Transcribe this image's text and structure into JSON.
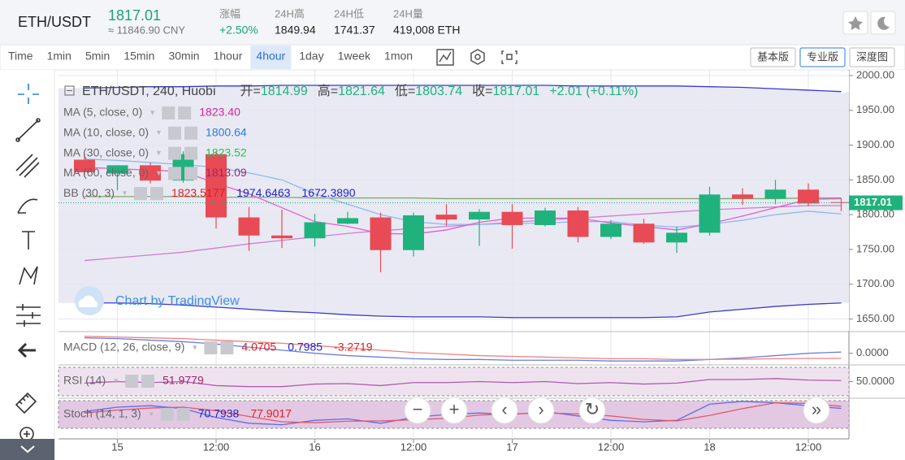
{
  "header": {
    "pair": "ETH/USDT",
    "price": "1817.01",
    "cny": "≈ 11846.90 CNY",
    "stats": [
      {
        "label": "涨幅",
        "value": "+2.50%",
        "color": "#1aa37a"
      },
      {
        "label": "24H高",
        "value": "1849.94",
        "color": "#222"
      },
      {
        "label": "24H低",
        "value": "1741.37",
        "color": "#222"
      },
      {
        "label": "24H量",
        "value": "419,008 ETH",
        "color": "#222"
      }
    ]
  },
  "toolbar": {
    "intervals": [
      {
        "label": "Time"
      },
      {
        "label": "1min"
      },
      {
        "label": "5min"
      },
      {
        "label": "15min"
      },
      {
        "label": "30min"
      },
      {
        "label": "1hour"
      },
      {
        "label": "4hour",
        "active": true
      },
      {
        "label": "1day"
      },
      {
        "label": "1week"
      },
      {
        "label": "1mon"
      }
    ],
    "versions": [
      {
        "label": "基本版"
      },
      {
        "label": "专业版",
        "active": true
      },
      {
        "label": "深度图"
      }
    ]
  },
  "chart": {
    "symbol": "ETH/USDT, 240, Huobi",
    "ohlc": [
      {
        "label": "开=",
        "value": "1814.99"
      },
      {
        "label": "高=",
        "value": "1821.64"
      },
      {
        "label": "低=",
        "value": "1803.74"
      },
      {
        "label": "收=",
        "value": "1817.01"
      }
    ],
    "change": "+2.01 (+0.11%)",
    "indicators": [
      {
        "name": "MA (5, close, 0)",
        "values": [
          {
            "text": "1823.40",
            "color": "#d6249f"
          }
        ]
      },
      {
        "name": "MA (10, close, 0)",
        "values": [
          {
            "text": "1800.64",
            "color": "#2a7de1"
          }
        ]
      },
      {
        "name": "MA (30, close, 0)",
        "values": [
          {
            "text": "1823.52",
            "color": "#1ec64f"
          }
        ]
      },
      {
        "name": "MA (60, close, 0)",
        "values": [
          {
            "text": "1813.09",
            "color": "#a0256e"
          }
        ]
      },
      {
        "name": "BB (30, 3)",
        "values": [
          {
            "text": "1823.5177",
            "color": "#e01e1e"
          },
          {
            "text": "1974.6463",
            "color": "#2222cc"
          },
          {
            "text": "1672.3890",
            "color": "#2222cc"
          }
        ]
      }
    ],
    "watermark": "Chart by TradingView",
    "ylim": [
      1633,
      2007
    ],
    "yticks": [
      {
        "value": 1650,
        "label": "1650.00"
      },
      {
        "value": 1700,
        "label": "1700.00"
      },
      {
        "value": 1750,
        "label": "1750.00"
      },
      {
        "value": 1800,
        "label": "1800.00"
      },
      {
        "value": 1850,
        "label": "1850.00"
      },
      {
        "value": 1900,
        "label": "1900.00"
      },
      {
        "value": 1950,
        "label": "1950.00"
      },
      {
        "value": 2000,
        "label": "2000.00"
      }
    ],
    "last_price": {
      "value": 1817.01,
      "label": "1817.01"
    },
    "categories": [
      null,
      "15",
      null,
      null,
      "12:00",
      null,
      null,
      "16",
      null,
      null,
      "12:00",
      null,
      null,
      "17",
      null,
      null,
      "12:00",
      null,
      null,
      "18",
      null,
      null,
      "12:00",
      null
    ],
    "up_color": "#20b27d",
    "down_color": "#e84a56",
    "candles": {
      "open": [
        1879,
        1859,
        1871,
        1849,
        1887,
        1796,
        1770,
        1766,
        1787,
        1796,
        1749,
        1800,
        1793,
        1804,
        1785,
        1806,
        1768,
        1787,
        1760,
        1774,
        1829,
        1823,
        1836,
        1818
      ],
      "high": [
        1887,
        1865,
        1875,
        1891,
        1891,
        1811,
        1807,
        1801,
        1804,
        1803,
        1803,
        1815,
        1808,
        1815,
        1810,
        1811,
        1792,
        1794,
        1783,
        1840,
        1838,
        1850,
        1845,
        1823
      ],
      "low": [
        1854,
        1835,
        1845,
        1846,
        1780,
        1748,
        1752,
        1754,
        1786,
        1717,
        1740,
        1784,
        1755,
        1751,
        1783,
        1760,
        1765,
        1758,
        1745,
        1770,
        1814,
        1815,
        1812,
        1805
      ],
      "close": [
        1861,
        1871,
        1849,
        1887,
        1796,
        1770,
        1766,
        1789,
        1795,
        1749,
        1799,
        1793,
        1804,
        1785,
        1806,
        1768,
        1787,
        1760,
        1774,
        1829,
        1823,
        1836,
        1816,
        1817.01
      ]
    },
    "lines": [
      {
        "name": "bb-upper",
        "color": "#3a3acc",
        "values": [
          1982,
          1983,
          1984,
          1984,
          1985,
          1985,
          1986,
          1986,
          1986,
          1986,
          1986,
          1986,
          1986,
          1986,
          1986,
          1985,
          1985,
          1985,
          1985,
          1984,
          1983,
          1981,
          1979,
          1977
        ]
      },
      {
        "name": "bb-lower",
        "color": "#3a3acc",
        "values": [
          1673,
          1673,
          1672,
          1670,
          1667,
          1664,
          1661,
          1659,
          1656,
          1654,
          1653,
          1653,
          1653,
          1652,
          1652,
          1652,
          1652,
          1652,
          1653,
          1660,
          1664,
          1668,
          1671,
          1673
        ]
      },
      {
        "name": "ma60",
        "color": "#cf7fcf",
        "values": [
          1734,
          1738,
          1742,
          1746,
          1752,
          1758,
          1763,
          1768,
          1773,
          1777,
          1780,
          1783,
          1786,
          1789,
          1792,
          1795,
          1798,
          1801,
          1804,
          1807,
          1809,
          1811,
          1813,
          1813
        ]
      },
      {
        "name": "ma30",
        "color": "#7fa86a",
        "values": [
          1826,
          1826,
          1826,
          1826,
          1825,
          1825,
          1825,
          1824,
          1824,
          1824,
          1824,
          1823,
          1823,
          1823,
          1823,
          1823,
          1823,
          1823,
          1823,
          1823,
          1823,
          1823,
          1824,
          1824
        ]
      },
      {
        "name": "ma10",
        "color": "#8fb8f0",
        "values": [
          1880,
          1878,
          1875,
          1872,
          1868,
          1860,
          1850,
          1830,
          1815,
          1800,
          1790,
          1786,
          1786,
          1787,
          1788,
          1790,
          1790,
          1785,
          1782,
          1786,
          1792,
          1800,
          1805,
          1801
        ]
      },
      {
        "name": "ma5",
        "color": "#e05fd0",
        "values": [
          1868,
          1866,
          1864,
          1862,
          1845,
          1830,
          1810,
          1790,
          1783,
          1773,
          1772,
          1778,
          1789,
          1795,
          1795,
          1795,
          1788,
          1783,
          1778,
          1787,
          1798,
          1810,
          1822,
          1823
        ]
      }
    ],
    "panes": [
      {
        "name": "MACD (12, 26, close, 9)",
        "legend": [
          {
            "text": "4.0705",
            "color": "#e01e1e"
          },
          {
            "text": "0.7985",
            "color": "#2222cc"
          },
          {
            "text": "-3.2719",
            "color": "#e01e1e"
          }
        ],
        "ylim": [
          -7,
          13
        ],
        "yticks": [
          {
            "value": 0,
            "label": "0.0000"
          }
        ],
        "band": false,
        "series": [
          {
            "color": "#6a7ee0",
            "values": [
              10,
              9.5,
              8.5,
              7.5,
              6,
              4,
              2,
              0,
              -1.5,
              -2.5,
              -3.5,
              -4,
              -4,
              -4.5,
              -4.5,
              -4.5,
              -5,
              -5,
              -5,
              -4,
              -3,
              -1.5,
              0,
              0.8
            ]
          },
          {
            "color": "#f08080",
            "values": [
              11,
              10.5,
              10,
              9.5,
              8.5,
              7.5,
              6.5,
              5,
              3.5,
              2,
              0.5,
              -0.5,
              -1.5,
              -2,
              -2.5,
              -3,
              -3.5,
              -3.5,
              -4,
              -4,
              -3.8,
              -3.5,
              -3.3,
              -3.3
            ]
          }
        ]
      },
      {
        "name": "RSI (14)",
        "legend": [
          {
            "text": "51.9779",
            "color": "#a0256e"
          }
        ],
        "ylim": [
          20,
          80
        ],
        "yticks": [
          {
            "value": 50,
            "label": "50.0000"
          }
        ],
        "band": true,
        "series": [
          {
            "color": "#b05bb0",
            "values": [
              47,
              50,
              48,
              50,
              42,
              40,
              40,
              45,
              46,
              42,
              48,
              48,
              50,
              48,
              50,
              46,
              48,
              45,
              47,
              54,
              54,
              56,
              53,
              52
            ]
          }
        ]
      },
      {
        "name": "Stoch (14, 1, 3)",
        "legend": [
          {
            "text": "70.7938",
            "color": "#2222cc"
          },
          {
            "text": "77.9017",
            "color": "#e01e1e"
          }
        ],
        "ylim": [
          0,
          100
        ],
        "yticks": [],
        "band": true,
        "series": [
          {
            "color": "#5a6ee8",
            "values": [
              60,
              75,
              80,
              70,
              40,
              20,
              15,
              30,
              35,
              20,
              40,
              50,
              55,
              50,
              60,
              45,
              30,
              25,
              30,
              85,
              95,
              90,
              80,
              70.8
            ]
          },
          {
            "color": "#e05a6a",
            "values": [
              55,
              65,
              72,
              75,
              63,
              43,
              25,
              22,
              27,
              28,
              32,
              37,
              48,
              52,
              55,
              52,
              45,
              33,
              28,
              47,
              70,
              90,
              88,
              78
            ]
          }
        ]
      }
    ]
  }
}
